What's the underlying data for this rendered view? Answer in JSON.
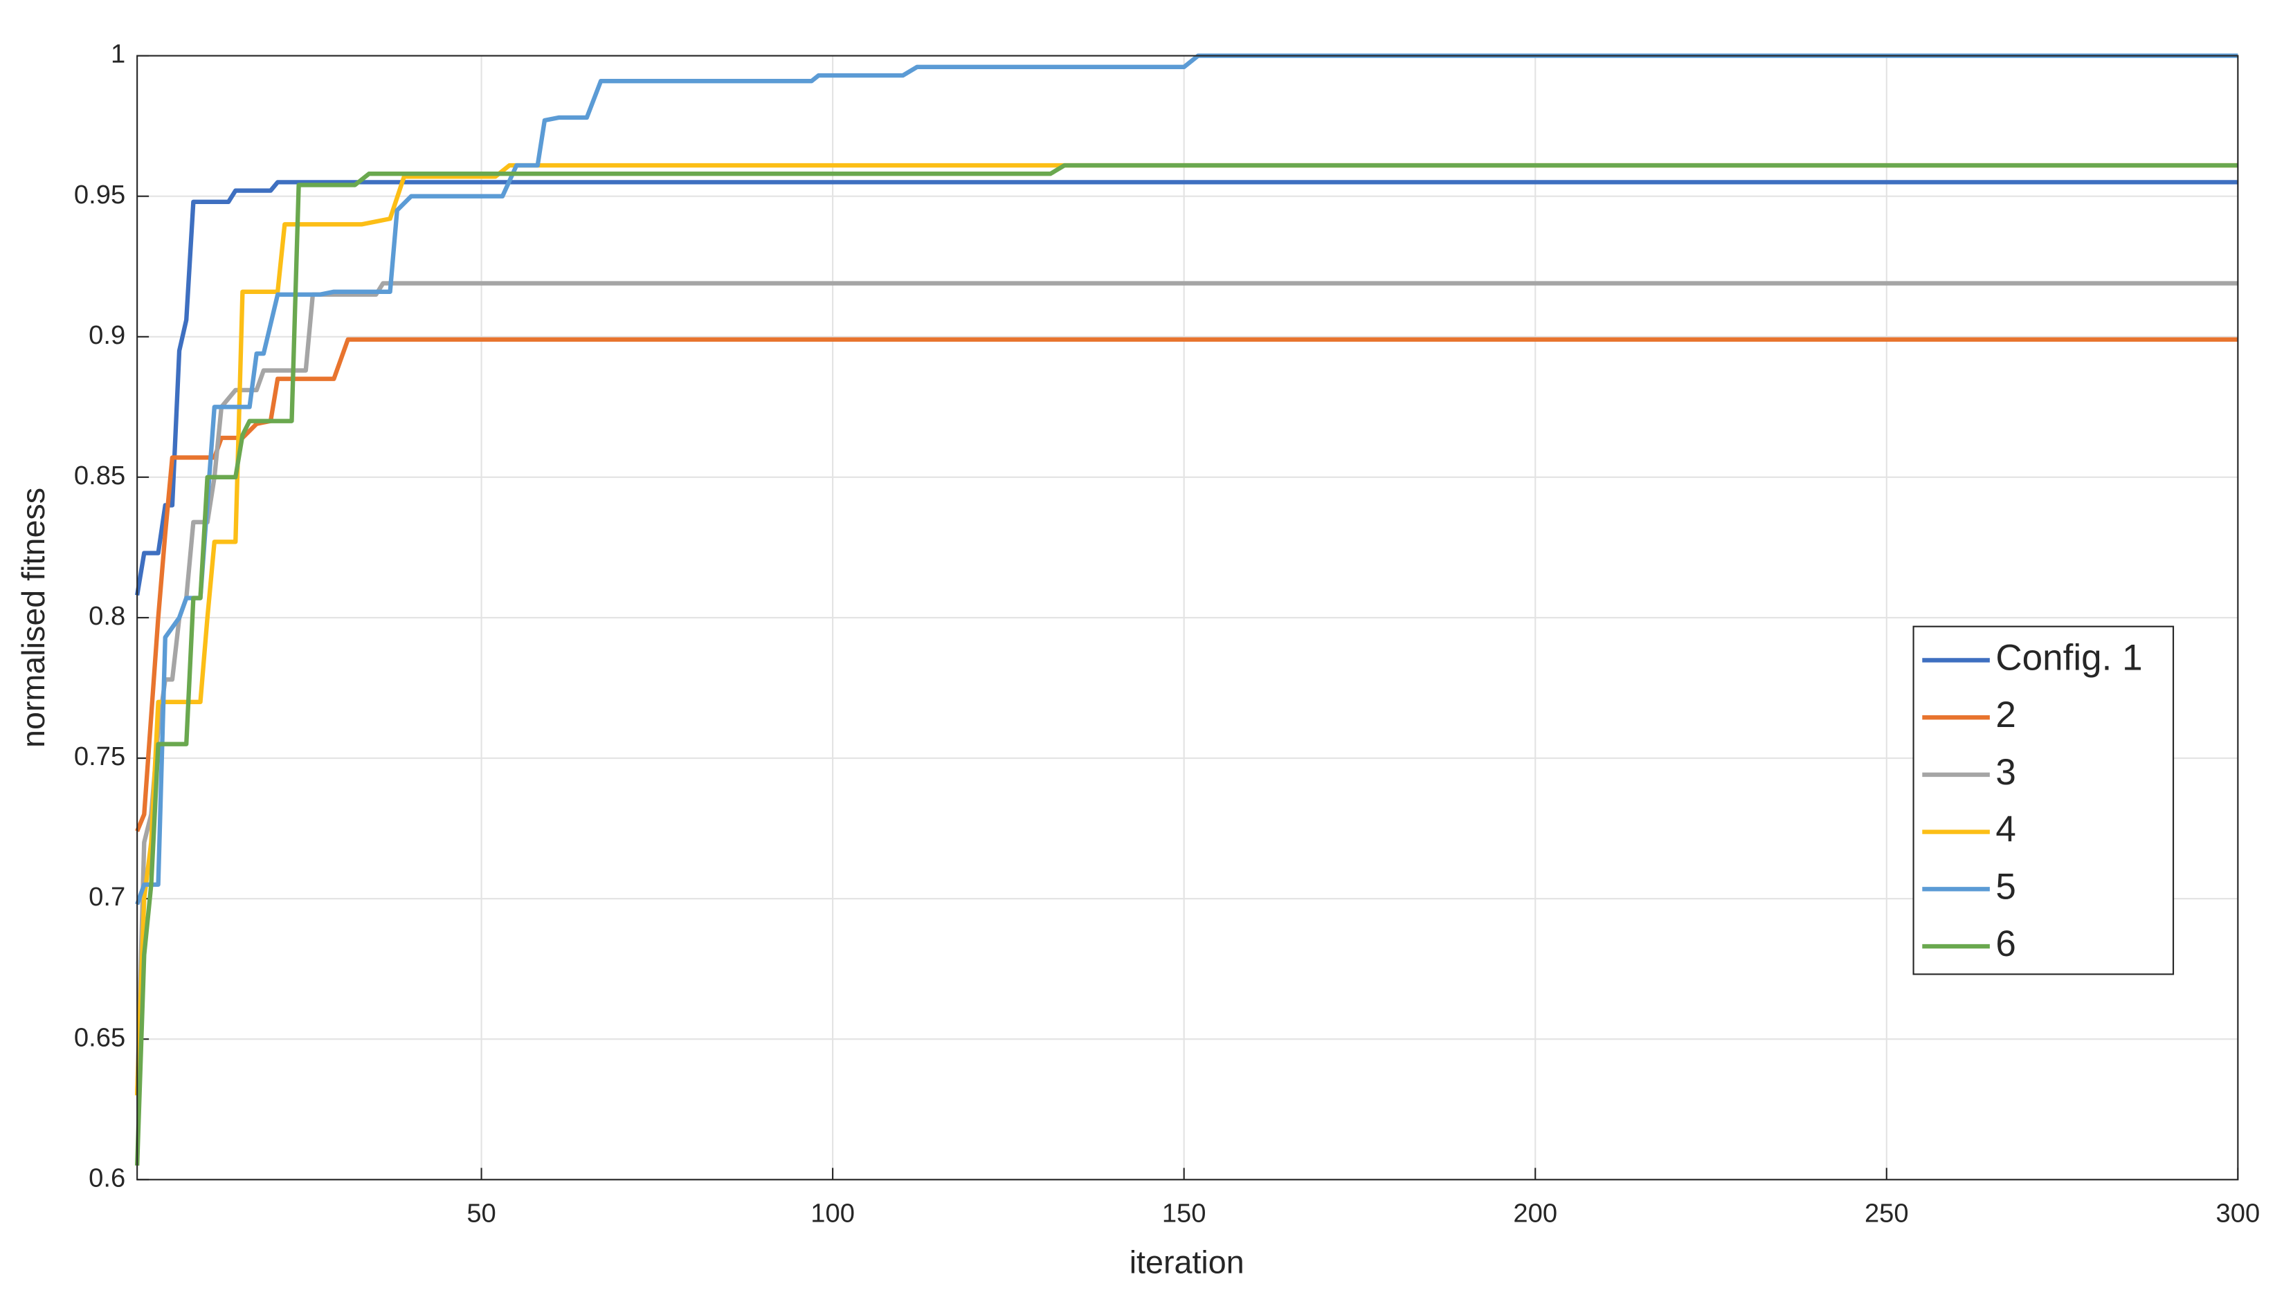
{
  "chart_data": {
    "type": "line",
    "xlabel": "iteration",
    "ylabel": "normalised fitness",
    "xlim": [
      1,
      300
    ],
    "ylim": [
      0.6,
      1
    ],
    "xticks": [
      50,
      100,
      150,
      200,
      250,
      300
    ],
    "yticks": [
      0.6,
      0.65,
      0.7,
      0.75,
      0.8,
      0.85,
      0.9,
      0.95,
      1
    ],
    "grid": true,
    "legend": "right",
    "series": [
      {
        "name": "Config. 1",
        "color": "#3e6fc0",
        "x": [
          1,
          2,
          4,
          5,
          6,
          7,
          8,
          9,
          14,
          15,
          20,
          21,
          300
        ],
        "values": [
          0.808,
          0.823,
          0.823,
          0.84,
          0.84,
          0.895,
          0.906,
          0.948,
          0.948,
          0.952,
          0.952,
          0.955,
          0.955
        ]
      },
      {
        "name": "2",
        "color": "#e8742e",
        "x": [
          1,
          2,
          4,
          5,
          6,
          12,
          13,
          16,
          18,
          20,
          21,
          29,
          31,
          300
        ],
        "values": [
          0.724,
          0.73,
          0.8,
          0.83,
          0.857,
          0.857,
          0.864,
          0.864,
          0.869,
          0.87,
          0.885,
          0.885,
          0.899,
          0.899
        ]
      },
      {
        "name": "3",
        "color": "#a5a5a5",
        "x": [
          1,
          2,
          3,
          4,
          5,
          6,
          7,
          8,
          9,
          11,
          12,
          13,
          15,
          18,
          19,
          25,
          26,
          35,
          36,
          300
        ],
        "values": [
          0.63,
          0.72,
          0.73,
          0.76,
          0.778,
          0.778,
          0.8,
          0.807,
          0.834,
          0.834,
          0.85,
          0.875,
          0.881,
          0.881,
          0.888,
          0.888,
          0.915,
          0.915,
          0.919,
          0.919
        ]
      },
      {
        "name": "4",
        "color": "#fcbe16",
        "x": [
          1,
          2,
          3,
          4,
          10,
          11,
          12,
          15,
          16,
          21,
          22,
          33,
          35,
          37,
          39,
          52,
          54,
          300
        ],
        "values": [
          0.63,
          0.7,
          0.72,
          0.77,
          0.77,
          0.8,
          0.827,
          0.827,
          0.916,
          0.916,
          0.94,
          0.94,
          0.941,
          0.942,
          0.957,
          0.957,
          0.961,
          0.961
        ]
      },
      {
        "name": "5",
        "color": "#5b9bd5",
        "x": [
          1,
          2,
          4,
          5,
          7,
          8,
          10,
          12,
          17,
          18,
          19,
          21,
          27,
          29,
          37,
          38,
          40,
          53,
          55,
          58,
          59,
          61,
          65,
          67,
          97,
          98,
          110,
          112,
          150,
          152,
          300
        ],
        "values": [
          0.698,
          0.705,
          0.705,
          0.793,
          0.8,
          0.807,
          0.807,
          0.875,
          0.875,
          0.894,
          0.894,
          0.915,
          0.915,
          0.916,
          0.916,
          0.945,
          0.95,
          0.95,
          0.961,
          0.961,
          0.977,
          0.978,
          0.978,
          0.991,
          0.991,
          0.993,
          0.993,
          0.996,
          0.996,
          1,
          1
        ]
      },
      {
        "name": "6",
        "color": "#6aa84f",
        "x": [
          1,
          2,
          3,
          4,
          8,
          9,
          10,
          11,
          15,
          16,
          17,
          23,
          24,
          32,
          34,
          131,
          133,
          300
        ],
        "values": [
          0.605,
          0.68,
          0.705,
          0.755,
          0.755,
          0.807,
          0.807,
          0.85,
          0.85,
          0.865,
          0.87,
          0.87,
          0.954,
          0.954,
          0.958,
          0.958,
          0.961,
          0.961
        ]
      }
    ]
  }
}
